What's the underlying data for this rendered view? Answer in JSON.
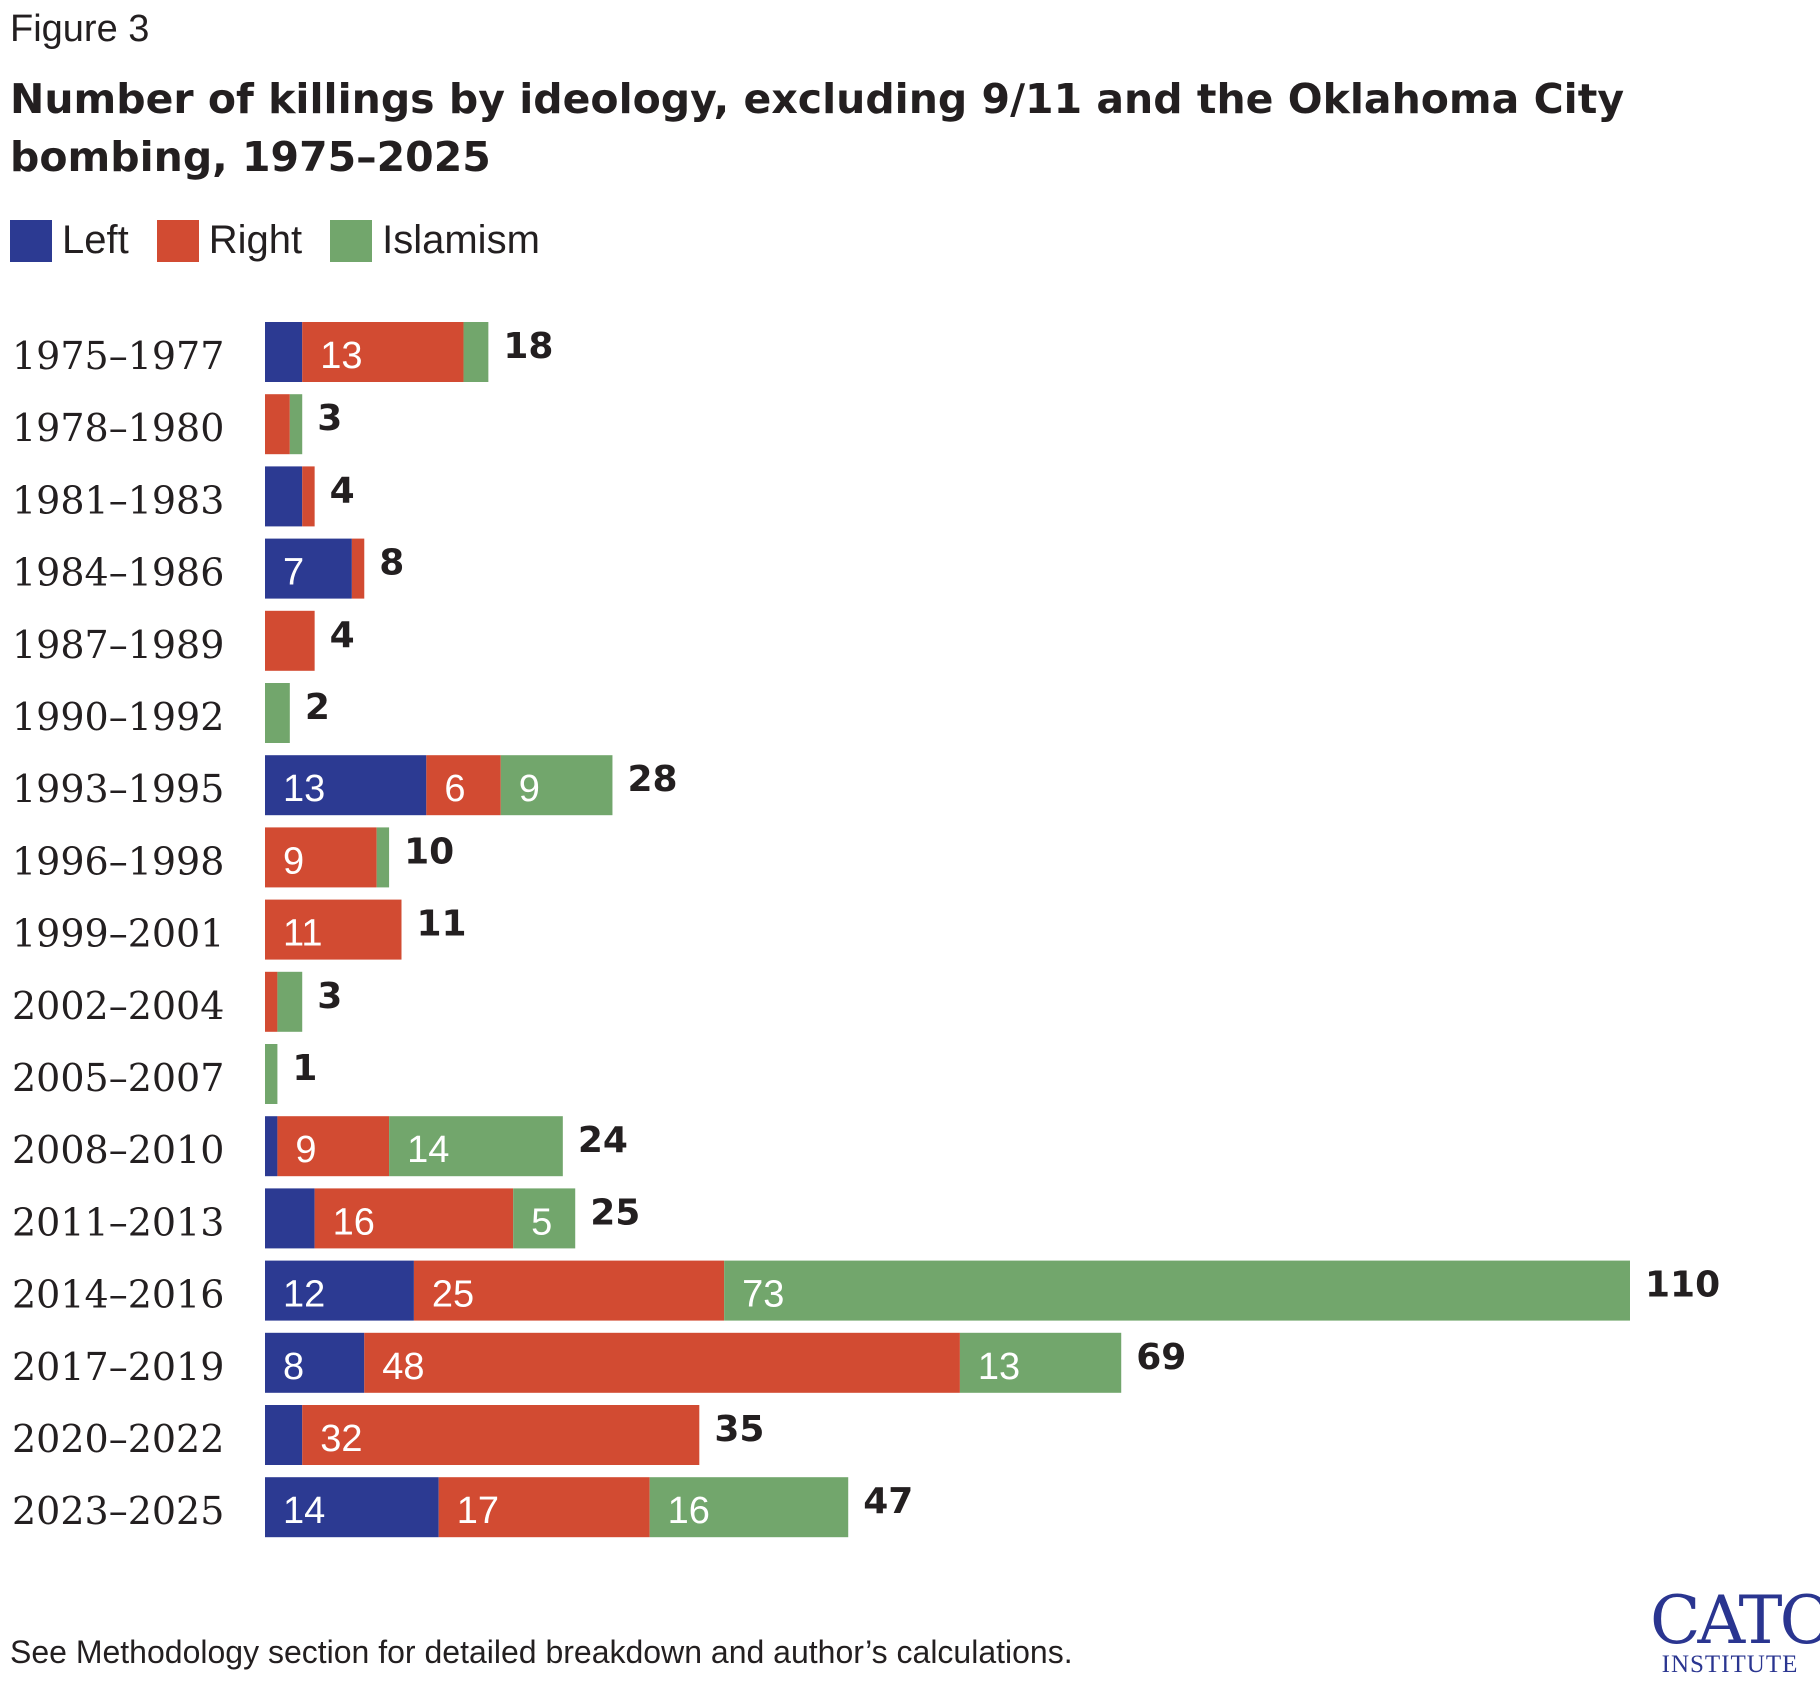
{
  "figure_label": "Figure 3",
  "title": "Number of killings by ideology, excluding 9/11 and the Oklahoma City bombing, 1975–2025",
  "legend": [
    {
      "label": "Left",
      "color": "#2c3a92"
    },
    {
      "label": "Right",
      "color": "#d24b32"
    },
    {
      "label": "Islamism",
      "color": "#72a66c"
    }
  ],
  "footnote": "See Methodology section for detailed breakdown and author’s calculations.",
  "logo": {
    "main": "CATO",
    "sub": "INSTITUTE"
  },
  "chart_data": {
    "type": "bar",
    "orientation": "horizontal",
    "stacked": true,
    "title": "Number of killings by ideology, excluding 9/11 and the Oklahoma City bombing, 1975–2025",
    "xlabel": "",
    "ylabel": "",
    "xlim": [
      0,
      110
    ],
    "grid": false,
    "legend_position": "top-left",
    "categories": [
      "1975–1977",
      "1978–1980",
      "1981–1983",
      "1984–1986",
      "1987–1989",
      "1990–1992",
      "1993–1995",
      "1996–1998",
      "1999–2001",
      "2002–2004",
      "2005–2007",
      "2008–2010",
      "2011–2013",
      "2014–2016",
      "2017–2019",
      "2020–2022",
      "2023–2025"
    ],
    "series": [
      {
        "name": "Left",
        "color": "#2c3a92",
        "values": [
          3,
          0,
          3,
          7,
          0,
          0,
          13,
          0,
          0,
          0,
          0,
          1,
          4,
          12,
          8,
          3,
          14
        ]
      },
      {
        "name": "Right",
        "color": "#d24b32",
        "values": [
          13,
          2,
          1,
          1,
          4,
          0,
          6,
          9,
          11,
          1,
          0,
          9,
          16,
          25,
          48,
          32,
          17
        ]
      },
      {
        "name": "Islamism",
        "color": "#72a66c",
        "values": [
          2,
          1,
          0,
          0,
          0,
          2,
          9,
          1,
          0,
          2,
          1,
          14,
          5,
          73,
          13,
          0,
          16
        ]
      }
    ],
    "totals": [
      18,
      3,
      4,
      8,
      4,
      2,
      28,
      10,
      11,
      3,
      1,
      24,
      25,
      110,
      69,
      35,
      47
    ],
    "segment_labels": [
      [
        "",
        "13",
        ""
      ],
      [
        "",
        "",
        ""
      ],
      [
        "",
        "",
        ""
      ],
      [
        "7",
        "",
        ""
      ],
      [
        "",
        "",
        ""
      ],
      [
        "",
        "",
        ""
      ],
      [
        "13",
        "6",
        "9"
      ],
      [
        "",
        "9",
        ""
      ],
      [
        "",
        "11",
        ""
      ],
      [
        "",
        "",
        ""
      ],
      [
        "",
        "",
        ""
      ],
      [
        "",
        "9",
        "14"
      ],
      [
        "",
        "16",
        "5"
      ],
      [
        "12",
        "25",
        "73"
      ],
      [
        "8",
        "48",
        "13"
      ],
      [
        "",
        "32",
        ""
      ],
      [
        "14",
        "17",
        "16"
      ]
    ]
  }
}
